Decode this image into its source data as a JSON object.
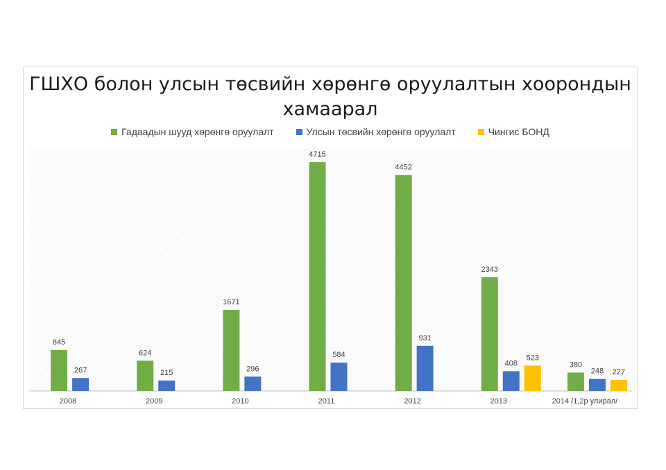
{
  "chart_data": {
    "type": "bar",
    "title": "ГШХО болон улсын төсвийн хөрөнгө оруулалтын хоорондын хамаарал",
    "title_lines": [
      "ГШХО болон улсын төсвийн хөрөнгө оруулалтын хоорондын",
      "хамаарал"
    ],
    "categories": [
      "2008",
      "2009",
      "2010",
      "2011",
      "2012",
      "2013",
      "2014 /1,2р улирал/"
    ],
    "series": [
      {
        "name": "Гадаадын шууд хөрөнгө оруулалт",
        "color": "#70ad47",
        "values": [
          845,
          624,
          1671,
          4715,
          4452,
          2343,
          380
        ]
      },
      {
        "name": "Улсын төсвийн хөрөнгө оруулалт",
        "color": "#4472c4",
        "values": [
          267,
          215,
          296,
          584,
          931,
          408,
          248
        ]
      },
      {
        "name": "Чингис БОНД",
        "color": "#ffc000",
        "values": [
          null,
          null,
          null,
          null,
          null,
          523,
          227
        ]
      }
    ],
    "ylim": [
      0,
      5000
    ],
    "legend_position": "top",
    "grid": false,
    "data_labels": true
  }
}
